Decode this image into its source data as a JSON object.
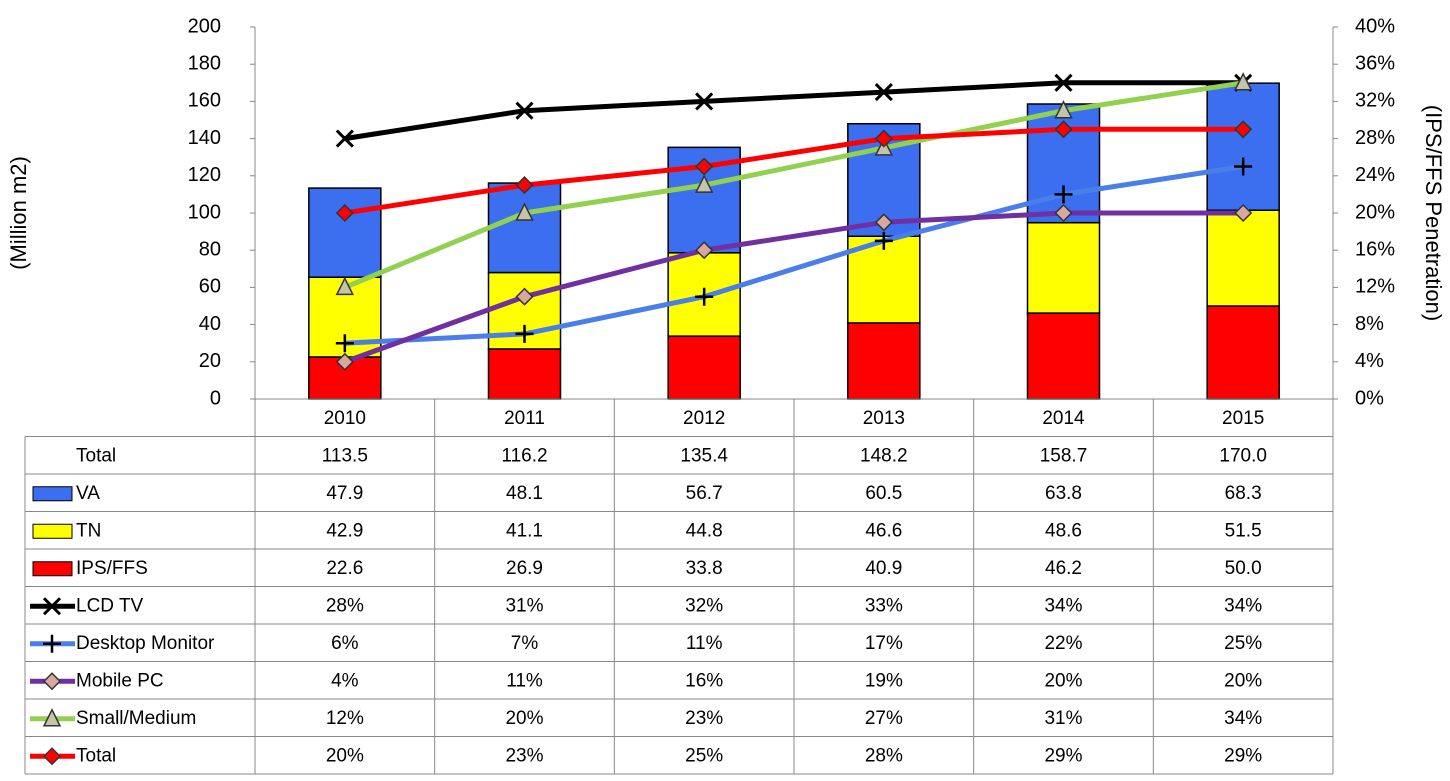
{
  "chart_data": {
    "type": "bar-line",
    "categories": [
      "2010",
      "2011",
      "2012",
      "2013",
      "2014",
      "2015"
    ],
    "ylabel": "(Million m2)",
    "y2label": "(IPS/FFS Penetration)",
    "ylim": [
      0,
      200
    ],
    "yticks": [
      0,
      20,
      40,
      60,
      80,
      100,
      120,
      140,
      160,
      180,
      200
    ],
    "y2lim": [
      0,
      40
    ],
    "y2ticks": [
      {
        "value": 0,
        "label": "0%"
      },
      {
        "value": 4,
        "label": "4%"
      },
      {
        "value": 8,
        "label": "8%"
      },
      {
        "value": 12,
        "label": "12%"
      },
      {
        "value": 16,
        "label": "16%"
      },
      {
        "value": 20,
        "label": "20%"
      },
      {
        "value": 24,
        "label": "24%"
      },
      {
        "value": 28,
        "label": "28%"
      },
      {
        "value": 32,
        "label": "32%"
      },
      {
        "value": 36,
        "label": "36%"
      },
      {
        "value": 40,
        "label": "40%"
      }
    ],
    "totals": {
      "name": "Total",
      "values": [
        113.5,
        116.2,
        135.4,
        148.2,
        158.7,
        170.0
      ],
      "value_labels": [
        "113.5",
        "116.2",
        "135.4",
        "148.2",
        "158.7",
        "170.0"
      ]
    },
    "series": [
      {
        "name": "VA",
        "type": "bar",
        "color": "#3b6ff0",
        "values": [
          47.9,
          48.1,
          56.7,
          60.5,
          63.8,
          68.3
        ]
      },
      {
        "name": "TN",
        "type": "bar",
        "color": "#ffff00",
        "values": [
          42.9,
          41.1,
          44.8,
          46.6,
          48.6,
          51.5
        ]
      },
      {
        "name": "IPS/FFS",
        "type": "bar",
        "color": "#ff0000",
        "values": [
          22.6,
          26.9,
          33.8,
          40.9,
          46.2,
          50.0
        ],
        "value_labels": [
          "22.6",
          "26.9",
          "33.8",
          "40.9",
          "46.2",
          "50.0"
        ]
      },
      {
        "name": "LCD TV",
        "type": "line",
        "axis": "y2",
        "marker": "x",
        "color": "#000000",
        "values": [
          28,
          31,
          32,
          33,
          34,
          34
        ],
        "value_labels": [
          "28%",
          "31%",
          "32%",
          "33%",
          "34%",
          "34%"
        ]
      },
      {
        "name": "Desktop Monitor",
        "type": "line",
        "axis": "y2",
        "marker": "plus",
        "color": "#4a7ee8",
        "values": [
          6,
          7,
          11,
          17,
          22,
          25
        ],
        "value_labels": [
          "6%",
          "7%",
          "11%",
          "17%",
          "22%",
          "25%"
        ]
      },
      {
        "name": "Mobile PC",
        "type": "line",
        "axis": "y2",
        "marker": "diamond",
        "marker_color": "#d8a8a0",
        "color": "#7030a0",
        "values": [
          4,
          11,
          16,
          19,
          20,
          20
        ],
        "value_labels": [
          "4%",
          "11%",
          "16%",
          "19%",
          "20%",
          "20%"
        ]
      },
      {
        "name": "Small/Medium",
        "type": "line",
        "axis": "y2",
        "marker": "triangle",
        "marker_color": "#c4c4a8",
        "color": "#92d050",
        "values": [
          12,
          20,
          23,
          27,
          31,
          34
        ],
        "value_labels": [
          "12%",
          "20%",
          "23%",
          "27%",
          "31%",
          "34%"
        ]
      },
      {
        "name": "Total",
        "type": "line",
        "axis": "y2",
        "marker": "diamond",
        "marker_color": "#ff0000",
        "color": "#ff0000",
        "values": [
          20,
          23,
          25,
          28,
          29,
          29
        ],
        "value_labels": [
          "20%",
          "23%",
          "25%",
          "28%",
          "29%",
          "29%"
        ]
      }
    ]
  }
}
